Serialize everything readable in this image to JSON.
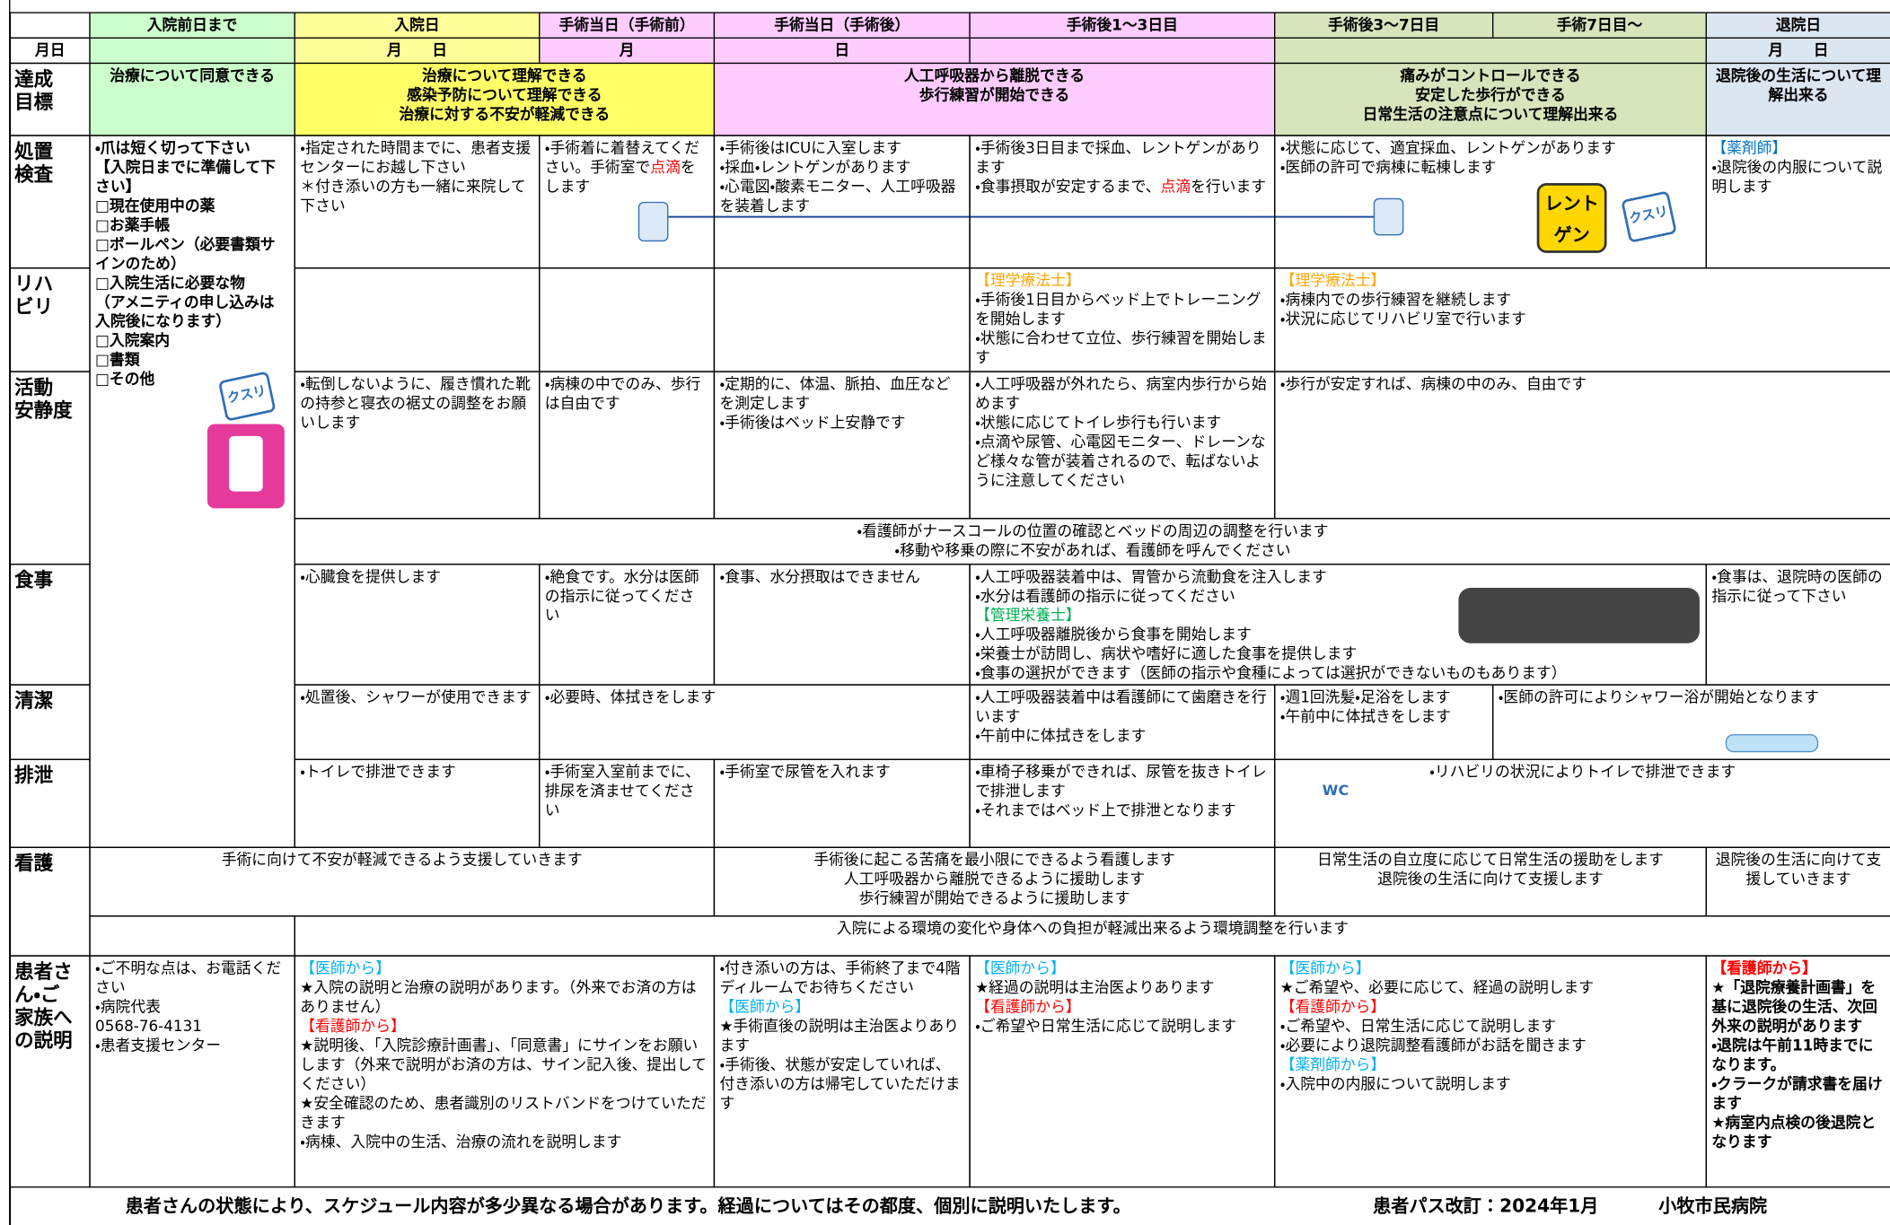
{
  "header": {
    "columns": [
      "入院前日まで",
      "入院日",
      "手術当日（手術前）",
      "手術当日（手術後）",
      "手術後1～3日目",
      "手術後3～7日目",
      "手術7日目～",
      "退院日"
    ]
  },
  "date_row": {
    "label": "月日",
    "cells": [
      "月　　日",
      "月",
      "日",
      "月　　日"
    ]
  },
  "rows": [
    {
      "label": "達成\n目標",
      "cells": [
        [
          "治療について同意できる"
        ],
        [
          "治療について理解できる",
          "感染予防について理解できる",
          "治療に対する不安が軽減できる"
        ],
        [
          "人工呼吸器から離脱できる",
          "歩行練習が開始できる"
        ],
        [
          "痛みがコントロールできる",
          "安定した歩行ができる",
          "日常生活の注意点について理解出来る"
        ],
        [
          "退院後の生活について理解出来る"
        ]
      ]
    },
    {
      "label": "処置\n検査",
      "cells": [
        [
          "・爪は短く切って下さい",
          "【入院日までに準備して下さい】",
          "□現在使用中の薬",
          "□お薬手帳",
          "□ボールペン（必要書類サインのため）",
          "□入院生活に必要な物",
          "（アメニティの申し込みは入院後になります）",
          "□入院案内",
          "□書類",
          "□その他"
        ],
        [
          "・指定された時間までに、患者支援センターにお越し下さい",
          "＊付き添いの方も一緒に来院して下さい"
        ],
        [
          [
            "・手術着に着替えてください。手術室で",
            {
              "text": "点滴",
              "color": "#ff0000"
            },
            "をします"
          ]
        ],
        [
          "・手術後はICUに入室します",
          "・採血・レントゲンがあります",
          "・心電図・酸素モニター、人工呼吸器を装着します"
        ],
        [
          "・手術後3日目まで採血、レントゲンがあります",
          [
            "・食事摂取が安定するまで、",
            {
              "text": "点滴",
              "color": "#ff0000"
            },
            "を行います"
          ]
        ],
        [
          "・状態に応じて、適宜採血、レントゲンがあります",
          "・医師の許可で病棟に転棟します"
        ],
        [
          {
            "text": "【薬剤師】",
            "color": "#0070c0"
          },
          "・退院後の内服について説明します"
        ]
      ]
    },
    {
      "label": "リハ\nビリ",
      "cells": [
        [
          {
            "text": "【理学療法士】",
            "color": "#ffa500"
          },
          "・手術後1日目からベッド上でトレーニングを開始します",
          "・状態に合わせて立位、歩行練習を開始します"
        ],
        [
          {
            "text": "【理学療法士】",
            "color": "#ffa500"
          },
          "・病棟内での歩行練習を継続します",
          "・状況に応じてリハビリ室で行います"
        ]
      ]
    },
    {
      "label": "活動\n安静度",
      "cells": [
        [
          "・転倒しないように、履き慣れた靴の持参と寝衣の裾丈の調整をお願いします"
        ],
        [
          "・病棟の中でのみ、歩行は自由です"
        ],
        [
          "・定期的に、体温、脈拍、血圧などを測定します",
          "・手術後はベッド上安静です"
        ],
        [
          "・人工呼吸器が外れたら、病室内歩行から始めます",
          "・状態に応じてトイレ歩行も行います",
          "・点滴や尿管、心電図モニター、ドレーンなど様々な管が装着されるので、転ばないように注意してください"
        ],
        [
          "・歩行が安定すれば、病棟の中のみ、自由です"
        ]
      ]
    },
    {
      "cells": [
        [
          "・看護師がナースコールの位置の確認とベッドの周辺の調整を行います",
          "・移動や移乗の際に不安があれば、看護師を呼んでください"
        ]
      ]
    },
    {
      "label": "食事",
      "cells": [
        [
          "・心臓食を提供します"
        ],
        [
          "・絶食です。水分は医師の指示に従ってください"
        ],
        [
          "・食事、水分摂取はできません"
        ],
        [
          "・人工呼吸器装着中は、胃管から流動食を注入します",
          "・水分は看護師の指示に従ってください",
          {
            "text": "【管理栄養士】",
            "color": "#00b050"
          },
          "・人工呼吸器離脱後から食事を開始します",
          "・栄養士が訪問し、病状や嗜好に適した食事を提供します",
          "・食事の選択ができます（医師の指示や食種によっては選択ができないものもあります）"
        ],
        [
          "・食事は、退院時の医師の指示に従って下さい"
        ]
      ]
    },
    {
      "label": "清潔",
      "cells": [
        [
          "・処置後、シャワーが使用できます"
        ],
        [
          "・必要時、体拭きをします"
        ],
        [
          "・人工呼吸器装着中は看護師にて歯磨きを行います",
          "・午前中に体拭きをします"
        ],
        [
          "・週1回洗髪・足浴をします",
          "・午前中に体拭きをします"
        ],
        [
          "・医師の許可によりシャワー浴が開始となります"
        ]
      ]
    },
    {
      "label": "排泄",
      "cells": [
        [
          "・トイレで排泄できます"
        ],
        [
          "・手術室入室前までに、排尿を済ませてください"
        ],
        [
          "・手術室で尿管を入れます"
        ],
        [
          "・車椅子移乗ができれば、尿管を抜きトイレで排泄します",
          "・それまではベッド上で排泄となります"
        ],
        [
          "・リハビリの状況によりトイレで排泄できます"
        ]
      ]
    },
    {
      "label": "看護",
      "cells": [
        [
          "手術に向けて不安が軽減できるよう支援していきます"
        ],
        [
          "手術後に起こる苦痛を最小限にできるよう看護します",
          "人工呼吸器から離脱できるように援助します",
          "歩行練習が開始できるように援助します"
        ],
        [
          "日常生活の自立度に応じて日常生活の援助をします",
          "退院後の生活に向けて支援します"
        ],
        [
          "退院後の生活に向けて支援していきます"
        ]
      ]
    },
    {
      "cells": [
        [
          "入院による環境の変化や身体への負担が軽減出来るよう環境調整を行います"
        ]
      ]
    },
    {
      "label": "患者さ\nん・ご\n家族へ\nの説明",
      "cells": [
        [
          "・ご不明な点は、お電話ください",
          "・病院代表",
          "0568-76-4131",
          "・患者支援センター"
        ],
        [
          {
            "text": "【医師から】",
            "color": "#00b0f0"
          },
          "★入院の説明と治療の説明があります。（外来でお済の方はありません）",
          {
            "text": "【看護師から】",
            "color": "#ff0000"
          },
          "★説明後、「入院診療計画書」、「同意書」にサインをお願いします（外来で説明がお済の方は、サイン記入後、提出してください）",
          "★安全確認のため、患者識別のリストバンドをつけていただきます",
          "・病棟、入院中の生活、治療の流れを説明します"
        ],
        [
          "・付き添いの方は、手術終了まで4階ディルームでお待ちください",
          {
            "text": "【医師から】",
            "color": "#00b0f0"
          },
          "★手術直後の説明は主治医よりあります",
          "・手術後、状態が安定していれば、付き添いの方は帰宅していただけます"
        ],
        [
          {
            "text": "【医師から】",
            "color": "#00b0f0"
          },
          "★経過の説明は主治医よりあります",
          {
            "text": "【看護師から】",
            "color": "#ff0000"
          },
          "・ご希望や日常生活に応じて説明します"
        ],
        [
          {
            "text": "【医師から】",
            "color": "#00b0f0"
          },
          "★ご希望や、必要に応じて、経過の説明します",
          {
            "text": "【看護師から】",
            "color": "#ff0000"
          },
          "・ご希望や、日常生活に応じて説明します",
          "・必要により退院調整看護師がお話を聞きます",
          {
            "text": "【薬剤師から】",
            "color": "#00b0f0"
          },
          "・入院中の内服について説明します"
        ],
        [
          {
            "text": "【看護師から】",
            "color": "#ff0000"
          },
          "★「退院療養計画書」を基に退院後の生活、次回外来の説明があります",
          "・退院は午前11時までになります。",
          "・クラークが請求書を届けます",
          "★病室内点検の後退院となります"
        ]
      ]
    }
  ],
  "icons": {
    "medicine_1": "クスリ",
    "xray": "レントゲン",
    "medicine_2": "クスリ",
    "wc": "WC"
  },
  "footer": {
    "note": "患者さんの状態により、スケジュール内容が多少異なる場合があります。経過についてはその都度、個別に説明いたします。",
    "revision": "患者パス改訂：2024年1月",
    "hospital": "小牧市民病院"
  }
}
